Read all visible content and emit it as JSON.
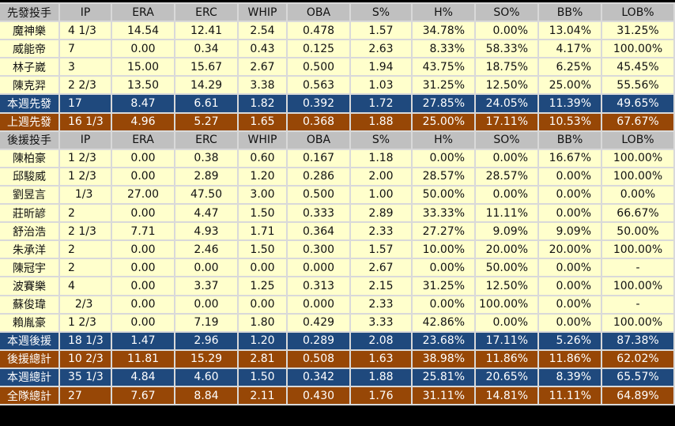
{
  "columns": [
    "IP",
    "ERA",
    "ERC",
    "WHIP",
    "OBA",
    "S%",
    "H%",
    "SO%",
    "BB%",
    "LOB%"
  ],
  "sections": [
    {
      "type": "head",
      "label": "先發投手"
    },
    {
      "type": "row",
      "cells": [
        "魔神樂",
        "4 1/3",
        "14.54",
        "12.41",
        "2.54",
        "0.478",
        "1.57",
        "34.78%",
        "0.00%",
        "13.04%",
        "31.25%"
      ]
    },
    {
      "type": "row",
      "cells": [
        "威能帝",
        "7",
        "0.00",
        "0.34",
        "0.43",
        "0.125",
        "2.63",
        "8.33%",
        "58.33%",
        "4.17%",
        "100.00%"
      ]
    },
    {
      "type": "row",
      "cells": [
        "林子崴",
        "3",
        "15.00",
        "15.67",
        "2.67",
        "0.500",
        "1.94",
        "43.75%",
        "18.75%",
        "6.25%",
        "45.45%"
      ]
    },
    {
      "type": "row",
      "cells": [
        "陳克羿",
        "2 2/3",
        "13.50",
        "14.29",
        "3.38",
        "0.563",
        "1.03",
        "31.25%",
        "12.50%",
        "25.00%",
        "55.56%"
      ]
    },
    {
      "type": "blue",
      "cells": [
        "本週先發",
        "17",
        "8.47",
        "6.61",
        "1.82",
        "0.392",
        "1.72",
        "27.85%",
        "24.05%",
        "11.39%",
        "49.65%"
      ]
    },
    {
      "type": "brown",
      "cells": [
        "上週先發",
        "16 1/3",
        "4.96",
        "5.27",
        "1.65",
        "0.368",
        "1.88",
        "25.00%",
        "17.11%",
        "10.53%",
        "67.67%"
      ]
    },
    {
      "type": "head",
      "label": "後援投手"
    },
    {
      "type": "row",
      "cells": [
        "陳柏豪",
        "1 2/3",
        "0.00",
        "0.38",
        "0.60",
        "0.167",
        "1.18",
        "0.00%",
        "0.00%",
        "16.67%",
        "100.00%"
      ]
    },
    {
      "type": "row",
      "cells": [
        "邱駿威",
        "1 2/3",
        "0.00",
        "2.89",
        "1.20",
        "0.286",
        "2.00",
        "28.57%",
        "28.57%",
        "0.00%",
        "100.00%"
      ]
    },
    {
      "type": "row",
      "cells": [
        "劉昱言",
        "  1/3",
        "27.00",
        "47.50",
        "3.00",
        "0.500",
        "1.00",
        "50.00%",
        "0.00%",
        "0.00%",
        "0.00%"
      ]
    },
    {
      "type": "row",
      "cells": [
        "莊昕諺",
        "2",
        "0.00",
        "4.47",
        "1.50",
        "0.333",
        "2.89",
        "33.33%",
        "11.11%",
        "0.00%",
        "66.67%"
      ]
    },
    {
      "type": "row",
      "cells": [
        "舒治浩",
        "2 1/3",
        "7.71",
        "4.93",
        "1.71",
        "0.364",
        "2.33",
        "27.27%",
        "9.09%",
        "9.09%",
        "50.00%"
      ]
    },
    {
      "type": "row",
      "cells": [
        "朱承洋",
        "2",
        "0.00",
        "2.46",
        "1.50",
        "0.300",
        "1.57",
        "10.00%",
        "20.00%",
        "20.00%",
        "100.00%"
      ]
    },
    {
      "type": "row",
      "cells": [
        "陳冠宇",
        "2",
        "0.00",
        "0.00",
        "0.00",
        "0.000",
        "2.67",
        "0.00%",
        "50.00%",
        "0.00%",
        "-"
      ]
    },
    {
      "type": "row",
      "cells": [
        "波賽樂",
        "4",
        "0.00",
        "3.37",
        "1.25",
        "0.313",
        "2.15",
        "31.25%",
        "12.50%",
        "0.00%",
        "100.00%"
      ]
    },
    {
      "type": "row",
      "cells": [
        "蘇俊瑋",
        "  2/3",
        "0.00",
        "0.00",
        "0.00",
        "0.000",
        "2.33",
        "0.00%",
        "100.00%",
        "0.00%",
        "-"
      ]
    },
    {
      "type": "row",
      "cells": [
        "賴胤豪",
        "1 2/3",
        "0.00",
        "7.19",
        "1.80",
        "0.429",
        "3.33",
        "42.86%",
        "0.00%",
        "0.00%",
        "100.00%"
      ]
    },
    {
      "type": "blue",
      "cells": [
        "本週後援",
        "18 1/3",
        "1.47",
        "2.96",
        "1.20",
        "0.289",
        "2.08",
        "23.68%",
        "17.11%",
        "5.26%",
        "87.38%"
      ]
    },
    {
      "type": "brown",
      "cells": [
        "後援總計",
        "10 2/3",
        "11.81",
        "15.29",
        "2.81",
        "0.508",
        "1.63",
        "38.98%",
        "11.86%",
        "11.86%",
        "62.02%"
      ]
    },
    {
      "type": "blue",
      "cells": [
        "本週總計",
        "35 1/3",
        "4.84",
        "4.60",
        "1.50",
        "0.342",
        "1.88",
        "25.81%",
        "20.65%",
        "8.39%",
        "65.57%"
      ]
    },
    {
      "type": "brown",
      "cells": [
        "全隊總計",
        "27",
        "7.67",
        "8.84",
        "2.11",
        "0.430",
        "1.76",
        "31.11%",
        "14.81%",
        "11.11%",
        "64.89%"
      ]
    }
  ]
}
